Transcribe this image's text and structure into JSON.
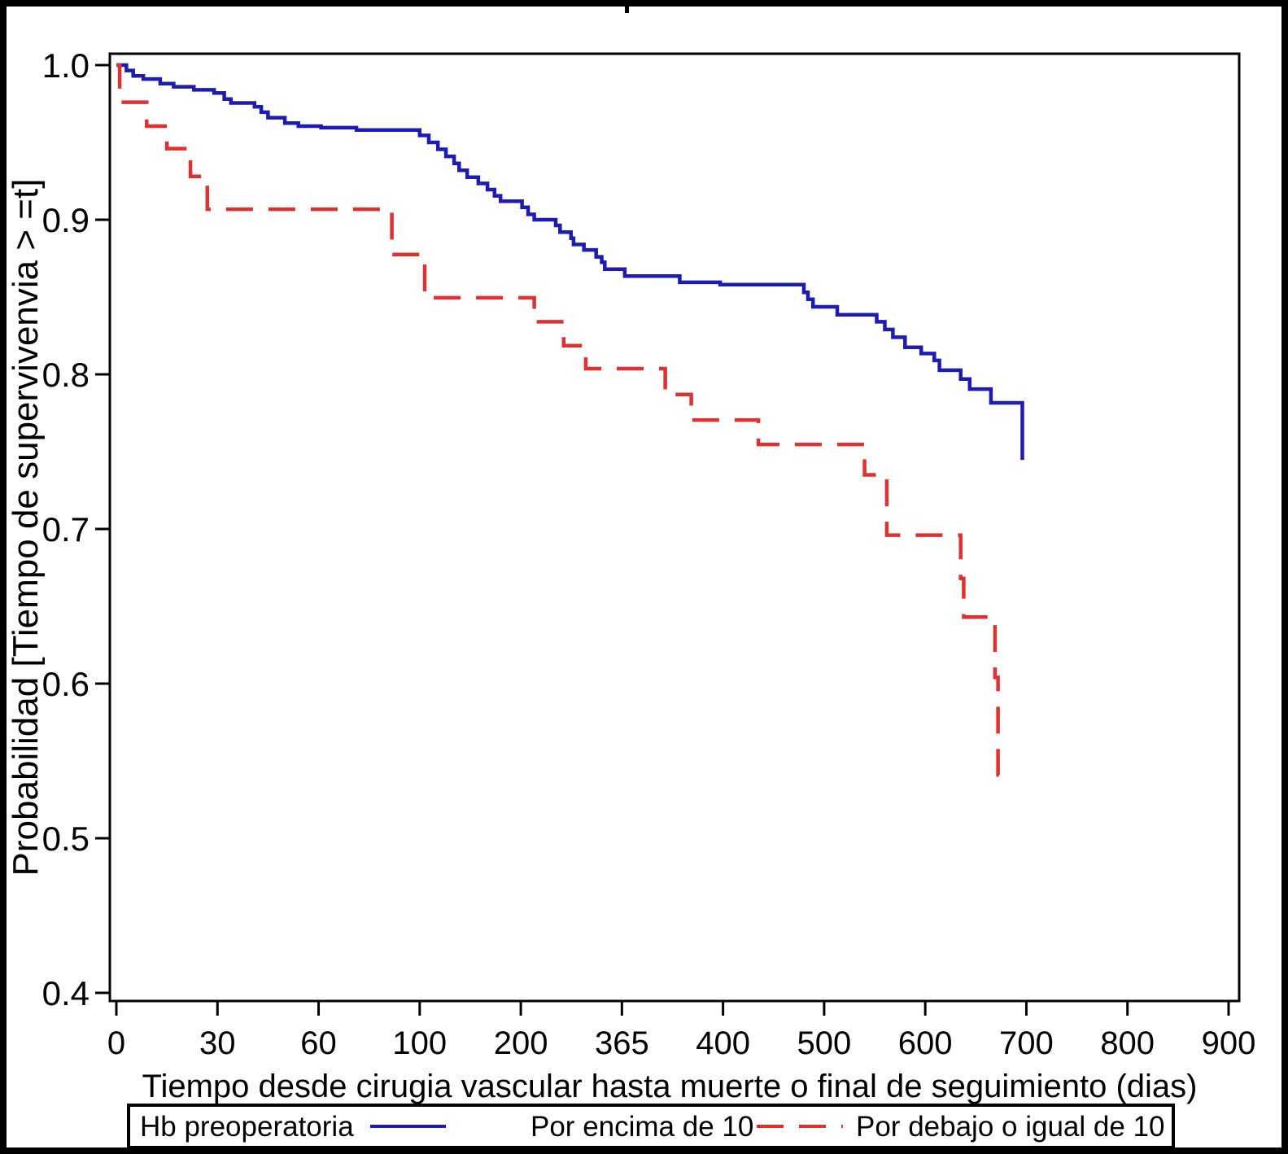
{
  "window": {
    "background": "#ffffff",
    "border_color": "#000000"
  },
  "chart_data": {
    "type": "line",
    "variant": "kaplan_meier_step_survival",
    "title": "",
    "xlabel": "Tiempo desde cirugia vascular hasta muerte o final de seguimiento (dias)",
    "ylabel": "Probabilidad [Tiempo de supervivenvia > =t]",
    "x_tick_labels": [
      "0",
      "30",
      "60",
      "100",
      "200",
      "365",
      "400",
      "500",
      "600",
      "700",
      "800",
      "900"
    ],
    "x_tick_values": [
      0,
      30,
      60,
      100,
      200,
      365,
      400,
      500,
      600,
      700,
      800,
      900
    ],
    "y_tick_labels": [
      "1.0",
      "0.9",
      "0.8",
      "0.7",
      "0.6",
      "0.5",
      "0.4"
    ],
    "ylim": [
      0.4,
      1.0
    ],
    "grid": false,
    "x_axis_note": "tick marks evenly spaced; day scale is piecewise (non-linear) between labeled ticks",
    "legend": {
      "title": "Hb preoperatoria",
      "position": "bottom",
      "entries": [
        {
          "label": "Por encima de 10",
          "style": "solid",
          "color": "#1c1cb4"
        },
        {
          "label": "Por debajo o igual de 10",
          "style": "dashed",
          "color": "#e03030"
        }
      ]
    },
    "series": [
      {
        "name": "Por encima de 10",
        "color": "#1c1cb4",
        "line_style": "solid",
        "points": [
          [
            0,
            1.0
          ],
          [
            3,
            0.9965
          ],
          [
            5,
            0.993
          ],
          [
            8,
            0.991
          ],
          [
            13,
            0.988
          ],
          [
            17,
            0.986
          ],
          [
            23,
            0.984
          ],
          [
            29,
            0.982
          ],
          [
            32,
            0.978
          ],
          [
            34,
            0.9755
          ],
          [
            41,
            0.973
          ],
          [
            43,
            0.9695
          ],
          [
            45,
            0.966
          ],
          [
            50,
            0.9625
          ],
          [
            54,
            0.9605
          ],
          [
            61,
            0.9595
          ],
          [
            75,
            0.958
          ],
          [
            100,
            0.9545
          ],
          [
            109,
            0.95
          ],
          [
            118,
            0.9455
          ],
          [
            126,
            0.941
          ],
          [
            134,
            0.9365
          ],
          [
            139,
            0.932
          ],
          [
            147,
            0.9275
          ],
          [
            158,
            0.9235
          ],
          [
            167,
            0.9195
          ],
          [
            174,
            0.9155
          ],
          [
            180,
            0.912
          ],
          [
            202,
            0.908
          ],
          [
            212,
            0.9035
          ],
          [
            222,
            0.9
          ],
          [
            257,
            0.8963
          ],
          [
            264,
            0.892
          ],
          [
            282,
            0.888
          ],
          [
            286,
            0.884
          ],
          [
            303,
            0.8805
          ],
          [
            323,
            0.876
          ],
          [
            332,
            0.8725
          ],
          [
            337,
            0.868
          ],
          [
            366,
            0.8635
          ],
          [
            385,
            0.8595
          ],
          [
            399,
            0.858
          ],
          [
            480,
            0.853
          ],
          [
            484,
            0.8485
          ],
          [
            489,
            0.8437
          ],
          [
            513,
            0.8385
          ],
          [
            552,
            0.834
          ],
          [
            560,
            0.829
          ],
          [
            568,
            0.824
          ],
          [
            580,
            0.8175
          ],
          [
            596,
            0.8135
          ],
          [
            609,
            0.809
          ],
          [
            614,
            0.8027
          ],
          [
            635,
            0.797
          ],
          [
            644,
            0.7905
          ],
          [
            665,
            0.7816
          ],
          [
            696,
            0.7447
          ]
        ]
      },
      {
        "name": "Por debajo o igual de 10",
        "color": "#e03030",
        "line_style": "dashed",
        "points": [
          [
            0,
            1.0
          ],
          [
            1,
            0.976
          ],
          [
            9,
            0.9605
          ],
          [
            15,
            0.946
          ],
          [
            22,
            0.928
          ],
          [
            27,
            0.9068
          ],
          [
            89,
            0.8775
          ],
          [
            105,
            0.8495
          ],
          [
            222,
            0.834
          ],
          [
            270,
            0.8185
          ],
          [
            306,
            0.8037
          ],
          [
            380,
            0.787
          ],
          [
            389,
            0.7705
          ],
          [
            435,
            0.7547
          ],
          [
            540,
            0.735
          ],
          [
            562,
            0.696
          ],
          [
            635,
            0.668
          ],
          [
            638,
            0.643
          ],
          [
            669,
            0.604
          ],
          [
            672,
            0.541
          ],
          [
            676,
            0.541
          ]
        ]
      }
    ]
  }
}
